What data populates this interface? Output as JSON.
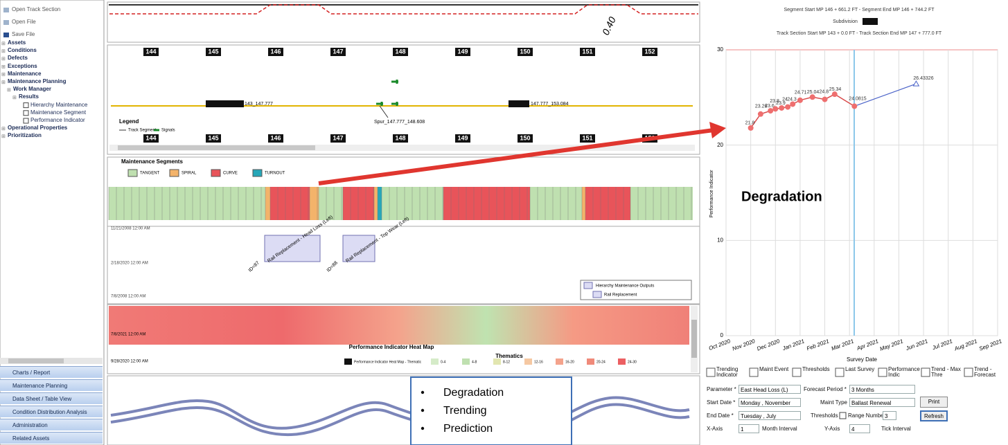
{
  "toolbar": [
    "Open Track Section",
    "Open File",
    "Save File"
  ],
  "tree": [
    "Assets",
    "Conditions",
    "Defects",
    "Exceptions",
    "Maintenance",
    "Maintenance Planning",
    "Work Manager",
    "Results",
    "Hierarchy Maintenance",
    "Maintenance Segment",
    "Performance Indicator",
    "Operational Properties",
    "Prioritization"
  ],
  "bottom_nav": [
    "Charts / Report",
    "Maintenance Planning",
    "Data Sheet / Table View",
    "Condition Distribution Analysis",
    "Administration",
    "Related Assets"
  ],
  "profile": {
    "label": "0.40"
  },
  "track": {
    "mileposts": [
      "144",
      "145",
      "146",
      "147",
      "148",
      "149",
      "150",
      "151",
      "152"
    ],
    "segments": [
      "143_147.777",
      "147.777_153.084",
      "Spur_147.777_148.608"
    ],
    "legend_title": "Legend",
    "legend": [
      "Track Segment",
      "Signals"
    ]
  },
  "maintenance_segments": {
    "title": "Maintenance Segments",
    "legend": [
      "TANGENT",
      "SPIRAL",
      "CURVE",
      "TURNOUT"
    ]
  },
  "gantt": {
    "dates": [
      "11/21/2008 12:00 AM",
      "2/18/2020 12:00 AM",
      "7/8/2008 12:00 AM"
    ],
    "tasks": [
      {
        "label": "Rail Replacement - Head Loss (Left)",
        "id": "ID=87"
      },
      {
        "label": "Rail Replacement - Top Wear (Left)",
        "id": "ID=88"
      }
    ],
    "legend": [
      "Hierarchy Maintenance Outputs",
      "Rail Replacement"
    ]
  },
  "heat_map": {
    "title": "Performance Indicator Heat Map",
    "thematics_title": "Thematics",
    "thematic_label": "Performance Indicator Heat Map - Thematic",
    "ranges": [
      "0-4",
      "4-8",
      "8-12",
      "12-16",
      "16-20",
      "20-24",
      "24-30"
    ],
    "dates": [
      "7/8/2021 12:00 AM",
      "9/28/2020 12:00 AM"
    ]
  },
  "callout": [
    "Degradation",
    "Trending",
    "Prediction"
  ],
  "performance_chart": {
    "header": [
      "Segment Start MP 146 + 661.2 FT - Segment End MP 146 + 744.2 FT",
      "Subdivision",
      "Track Section Start MP 143 + 0.0 FT - Track Section End MP 147 + 777.0 FT"
    ],
    "y_label": "Performance Indicator",
    "x_label": "Survey Date",
    "annotation": "Degradation",
    "ylim": [
      0,
      30
    ],
    "yticks": [
      0,
      10,
      20,
      30
    ],
    "xlim": [
      0,
      11
    ],
    "xticks": [
      {
        "value": 0,
        "label": "Oct 2020"
      },
      {
        "value": 1,
        "label": "Nov 2020"
      },
      {
        "value": 2,
        "label": "Dec 2020"
      },
      {
        "value": 3,
        "label": "Jan 2021"
      },
      {
        "value": 4,
        "label": "Feb 2021"
      },
      {
        "value": 5,
        "label": "Mar 2021"
      },
      {
        "value": 6,
        "label": "Apr 2021"
      },
      {
        "value": 7,
        "label": "May 2021"
      },
      {
        "value": 8,
        "label": "Jun 2021"
      },
      {
        "value": 9,
        "label": "Jul 2021"
      },
      {
        "value": 10,
        "label": "Aug 2021"
      },
      {
        "value": 11,
        "label": "Sep 2021"
      }
    ],
    "points": {
      "x": [
        1.0,
        1.4,
        1.8,
        2.0,
        2.25,
        2.5,
        2.7,
        3.0,
        3.5,
        4.0,
        4.4,
        5.2
      ],
      "values": [
        21.8,
        23.26,
        23.6,
        23.8,
        23.9,
        24.0,
        24.3,
        24.71,
        25.04,
        24.8,
        25.34,
        24.0815
      ]
    },
    "forecast": {
      "x": 7.7,
      "value": 26.43326
    }
  },
  "controls": {
    "toggles": [
      "Trending Indicator",
      "Maint Event",
      "Thresholds",
      "Last Survey",
      "Performance Indic",
      "Trend - Max Thre",
      "Trend - Forecast"
    ],
    "parameter_label": "Parameter *",
    "parameter": "East Head Loss (L)",
    "forecast_period_label": "Forecast Period *",
    "forecast_period": "3 Months",
    "start_date_label": "Start Date *",
    "start_date": "Monday , November",
    "maint_type_label": "Maint Type",
    "maint_type": "Ballast Renewal",
    "print": "Print",
    "end_date_label": "End Date *",
    "end_date": "Tuesday , July",
    "thresholds_label": "Thresholds",
    "range_number_label": "Range Number",
    "range_number": "3",
    "refresh": "Refresh",
    "x_axis_label": "X-Axis",
    "x_axis_value": "1",
    "x_interval": "Month Interval",
    "y_axis_label": "Y-Axis",
    "y_axis_value": "4",
    "y_interval": "Tick Interval"
  }
}
